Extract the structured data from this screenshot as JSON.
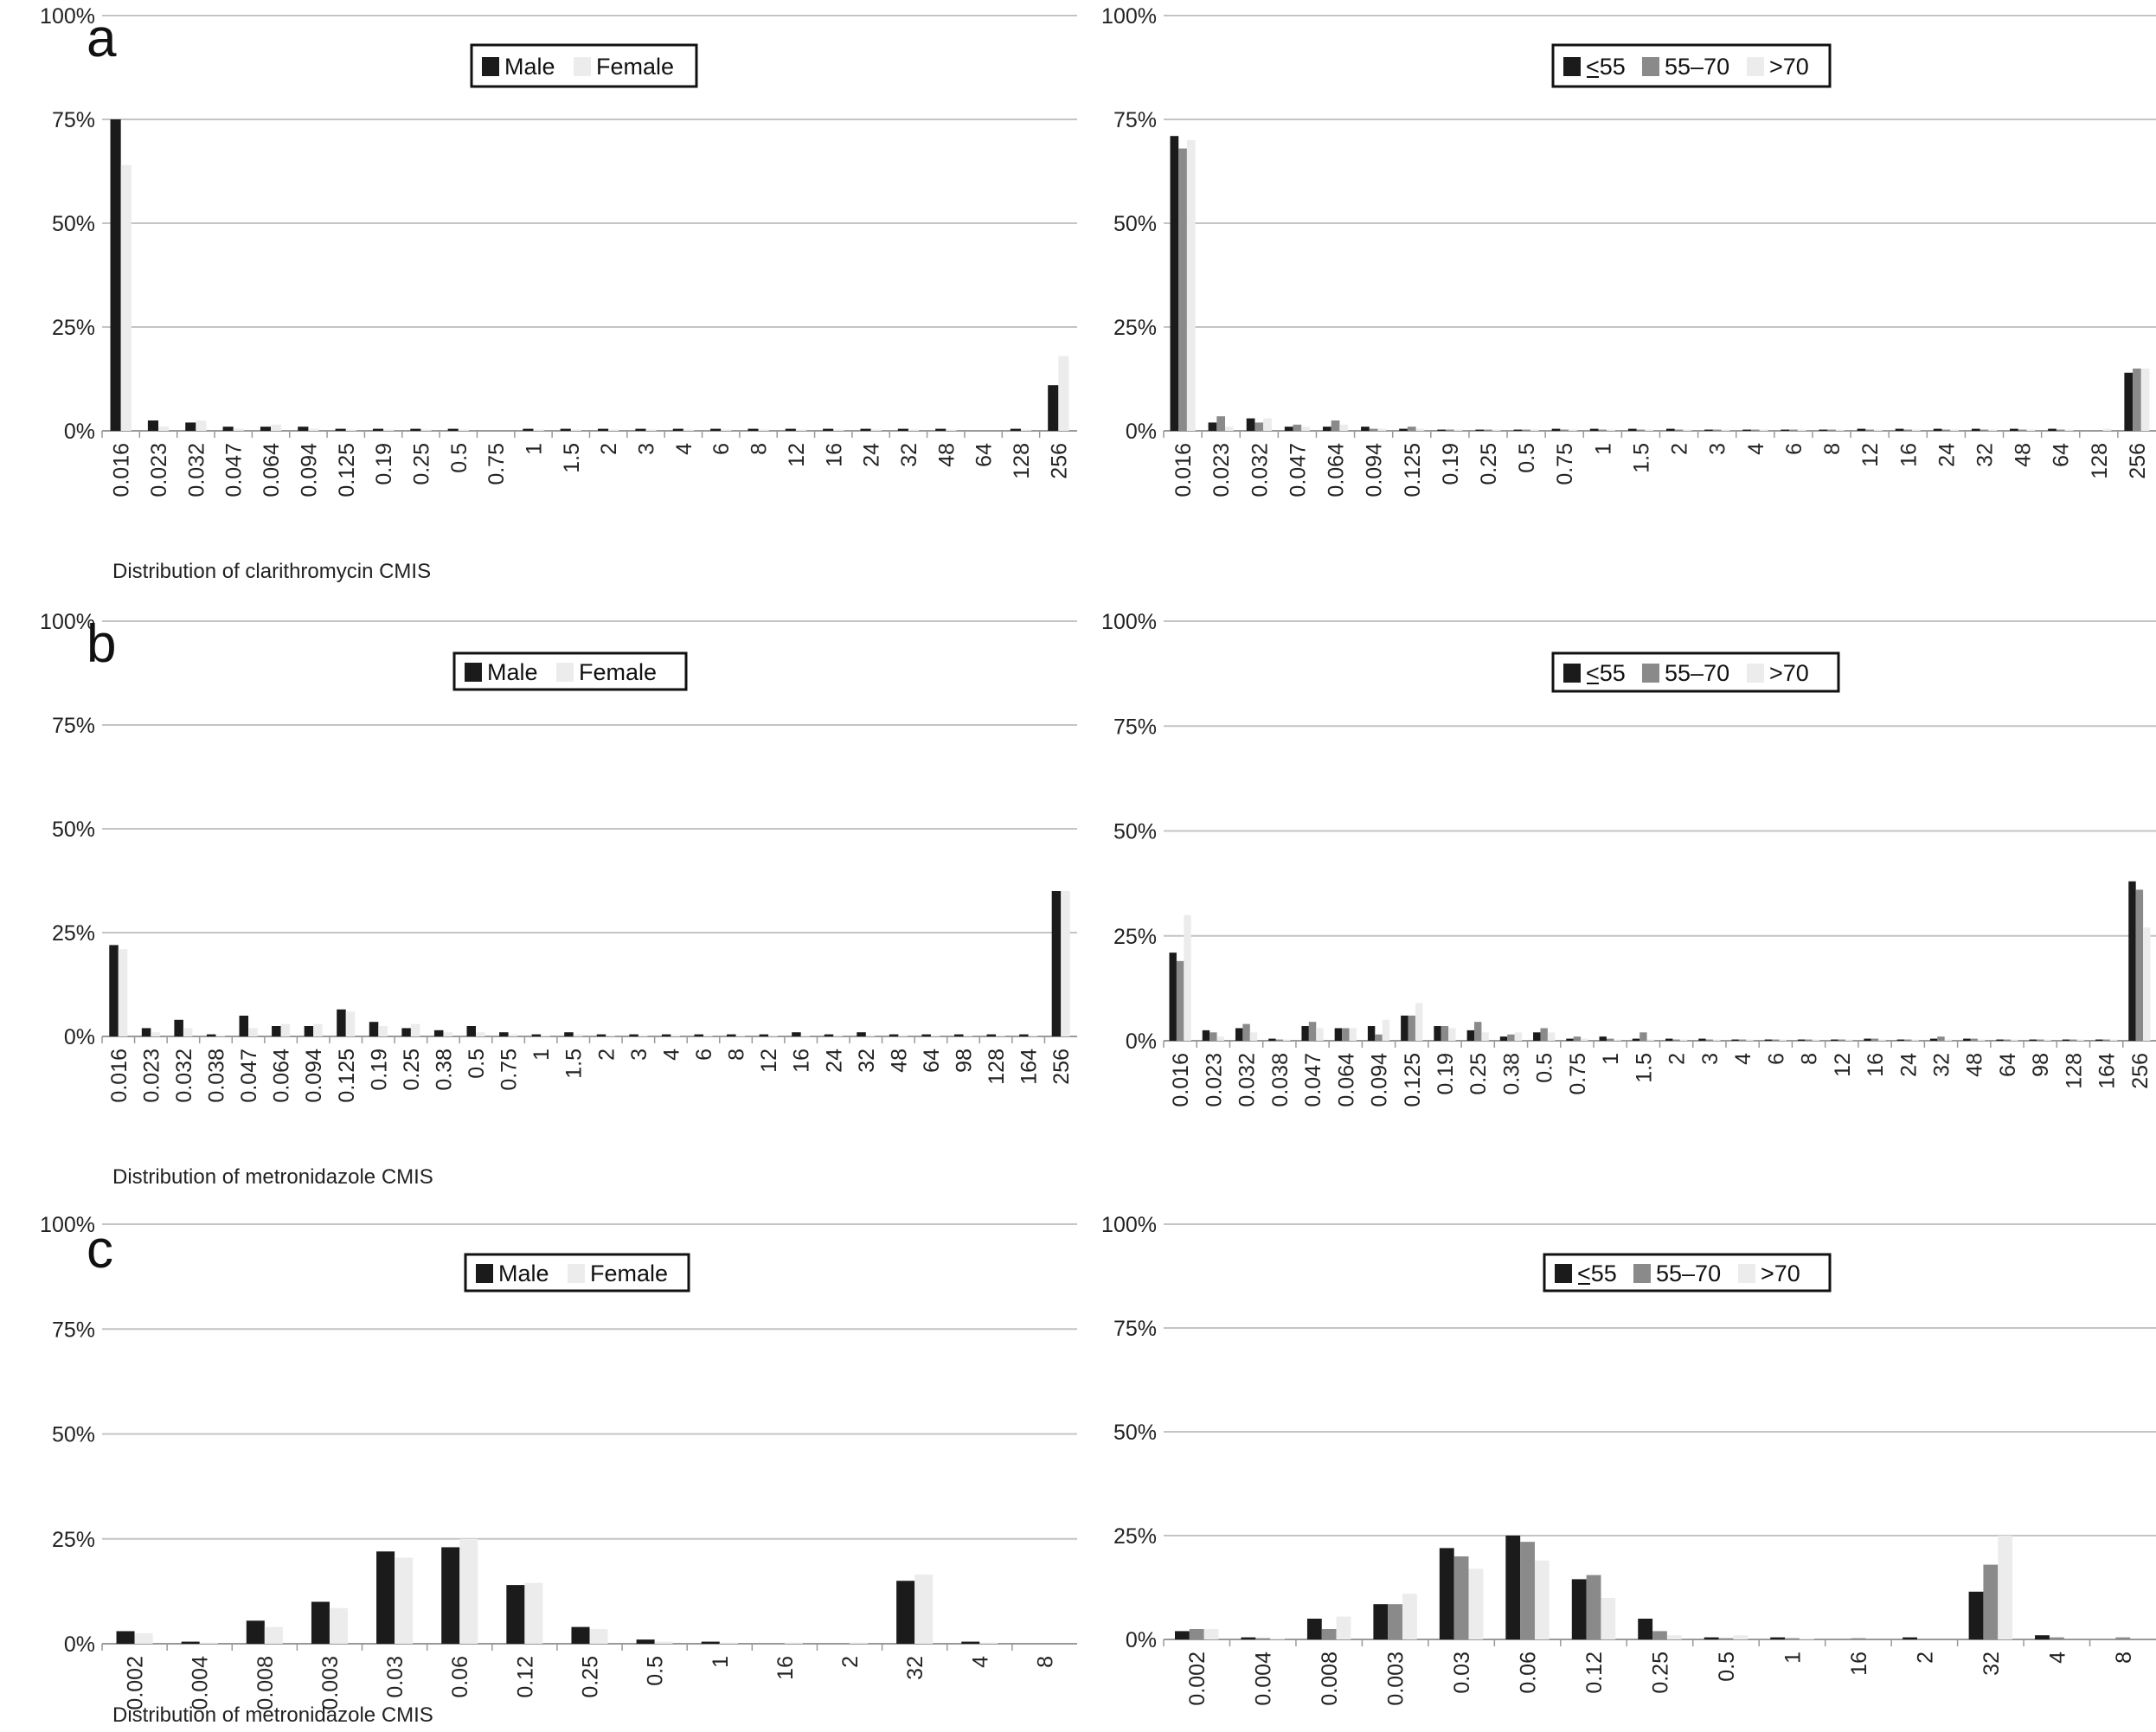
{
  "figure": {
    "series_colors": {
      "Male": "#1b1b1b",
      "Female": "#ececec",
      "<55": "#1b1b1b",
      "55-70": "#8a8a8a",
      ">70": "#ececec"
    },
    "grid_color": "#c4c4c4"
  },
  "chart_data": [
    {
      "id": "a-sex",
      "type": "bar",
      "panel_letter": "a",
      "xlabel": "Distribution of clarithromycin CMIS",
      "ylim": [
        0,
        100
      ],
      "yticks": [
        "0%",
        "25%",
        "50%",
        "75%",
        "100%"
      ],
      "grid": true,
      "legend_position": "top-center",
      "categories": [
        "0.016",
        "0.023",
        "0.032",
        "0.047",
        "0.064",
        "0.094",
        "0.125",
        "0.19",
        "0.25",
        "0.5",
        "0.75",
        "1",
        "1.5",
        "2",
        "3",
        "4",
        "6",
        "8",
        "12",
        "16",
        "24",
        "32",
        "48",
        "64",
        "128",
        "256"
      ],
      "series": [
        {
          "name": "Male",
          "legend": "Male",
          "values": [
            75,
            2.5,
            2,
            1,
            1,
            1,
            0.5,
            0.5,
            0.5,
            0.5,
            0,
            0.5,
            0.5,
            0.5,
            0.5,
            0.5,
            0.5,
            0.5,
            0.5,
            0.5,
            0.5,
            0.5,
            0.5,
            0,
            0.5,
            11
          ]
        },
        {
          "name": "Female",
          "legend": "Female",
          "values": [
            64,
            1,
            2.5,
            0.5,
            1.5,
            0.5,
            0.3,
            0.3,
            0.3,
            0.3,
            0,
            0.3,
            0.3,
            0.3,
            0.3,
            0.3,
            0.3,
            0.3,
            0.3,
            0.3,
            0.3,
            0.3,
            0.3,
            0,
            0.3,
            18
          ]
        }
      ]
    },
    {
      "id": "a-age",
      "type": "bar",
      "panel_letter": "",
      "xlabel": "",
      "ylim": [
        0,
        100
      ],
      "yticks": [
        "0%",
        "25%",
        "50%",
        "75%",
        "100%"
      ],
      "grid": true,
      "legend_position": "top-center",
      "categories": [
        "0.016",
        "0.023",
        "0.032",
        "0.047",
        "0.064",
        "0.094",
        "0.125",
        "0.19",
        "0.25",
        "0.5",
        "0.75",
        "1",
        "1.5",
        "2",
        "3",
        "4",
        "6",
        "8",
        "12",
        "16",
        "24",
        "32",
        "48",
        "64",
        "128",
        "256"
      ],
      "series": [
        {
          "name": "<55",
          "legend": "<55",
          "legend_underline": true,
          "values": [
            71,
            2,
            3,
            1,
            1,
            1,
            0.5,
            0.3,
            0.3,
            0.3,
            0.5,
            0.5,
            0.5,
            0.5,
            0.3,
            0.3,
            0.3,
            0.3,
            0.5,
            0.5,
            0.5,
            0.5,
            0.5,
            0.5,
            0,
            14
          ]
        },
        {
          "name": "55-70",
          "legend": "55–70",
          "values": [
            68,
            3.5,
            2,
            1.5,
            2.5,
            0.5,
            1,
            0.3,
            0.3,
            0.3,
            0.3,
            0.3,
            0.3,
            0.3,
            0.3,
            0.3,
            0.3,
            0.3,
            0.3,
            0.3,
            0.3,
            0.3,
            0.3,
            0.3,
            0,
            15
          ]
        },
        {
          "name": ">70",
          "legend": ">70",
          "values": [
            70,
            1,
            3,
            1,
            1.5,
            0.5,
            0.5,
            0.3,
            0.3,
            0.3,
            0.3,
            0.3,
            0.3,
            0.3,
            0.3,
            0.3,
            0.3,
            0.3,
            0.3,
            0.3,
            0.3,
            0.3,
            0.3,
            0.3,
            0.5,
            15
          ]
        }
      ]
    },
    {
      "id": "b-sex",
      "type": "bar",
      "panel_letter": "b",
      "xlabel": "Distribution of metronidazole CMIS",
      "ylim": [
        0,
        100
      ],
      "yticks": [
        "0%",
        "25%",
        "50%",
        "75%",
        "100%"
      ],
      "grid": true,
      "legend_position": "top-center",
      "categories": [
        "0.016",
        "0.023",
        "0.032",
        "0.038",
        "0.047",
        "0.064",
        "0.094",
        "0.125",
        "0.19",
        "0.25",
        "0.38",
        "0.5",
        "0.75",
        "1",
        "1.5",
        "2",
        "3",
        "4",
        "6",
        "8",
        "12",
        "16",
        "24",
        "32",
        "48",
        "64",
        "98",
        "128",
        "164",
        "256"
      ],
      "series": [
        {
          "name": "Male",
          "legend": "Male",
          "values": [
            22,
            2,
            4,
            0.5,
            5,
            2.5,
            2.5,
            6.5,
            3.5,
            2,
            1.5,
            2.5,
            1,
            0.5,
            1,
            0.5,
            0.5,
            0.5,
            0.5,
            0.5,
            0.5,
            1,
            0.5,
            1,
            0.5,
            0.5,
            0.5,
            0.5,
            0.5,
            35
          ]
        },
        {
          "name": "Female",
          "legend": "Female",
          "values": [
            21,
            1,
            2,
            0.3,
            2,
            3,
            3,
            6,
            2.5,
            3,
            1,
            1,
            0.5,
            0.3,
            0.5,
            0.3,
            0.3,
            0.3,
            0.3,
            0.3,
            0.3,
            0.3,
            0.3,
            0.3,
            0.3,
            0.3,
            0.3,
            0.3,
            0.3,
            35
          ]
        }
      ]
    },
    {
      "id": "b-age",
      "type": "bar",
      "panel_letter": "",
      "xlabel": "",
      "ylim": [
        0,
        100
      ],
      "yticks": [
        "0%",
        "25%",
        "50%",
        "75%",
        "100%"
      ],
      "grid": true,
      "legend_position": "top-center",
      "categories": [
        "0.016",
        "0.023",
        "0.032",
        "0.038",
        "0.047",
        "0.064",
        "0.094",
        "0.125",
        "0.19",
        "0.25",
        "0.38",
        "0.5",
        "0.75",
        "1",
        "1.5",
        "2",
        "3",
        "4",
        "6",
        "8",
        "12",
        "16",
        "24",
        "32",
        "48",
        "64",
        "98",
        "128",
        "164",
        "256"
      ],
      "series": [
        {
          "name": "<55",
          "legend": "<55",
          "legend_underline": true,
          "values": [
            21,
            2.5,
            3,
            0.5,
            3.5,
            3,
            3.5,
            6,
            3.5,
            2.5,
            1,
            2,
            0.5,
            1,
            0.5,
            0.5,
            0.5,
            0.3,
            0.3,
            0.3,
            0.3,
            0.5,
            0.3,
            0.5,
            0.5,
            0.3,
            0.3,
            0.3,
            0.3,
            38
          ]
        },
        {
          "name": "55-70",
          "legend": "55–70",
          "values": [
            19,
            2,
            4,
            0.3,
            4.5,
            3,
            1.5,
            6,
            3.5,
            4.5,
            1.5,
            3,
            1,
            0.5,
            2,
            0.3,
            0.3,
            0.3,
            0.3,
            0.3,
            0.3,
            0.5,
            0.3,
            1,
            0.5,
            0.3,
            0.3,
            0.3,
            0.3,
            36
          ]
        },
        {
          "name": ">70",
          "legend": ">70",
          "values": [
            30,
            1,
            2,
            0.3,
            3,
            3,
            5,
            9,
            3,
            2,
            2,
            2,
            0.5,
            0.3,
            0.3,
            0.3,
            0.3,
            0.3,
            0.3,
            0.3,
            0.3,
            0.3,
            0.3,
            0.3,
            0.3,
            0.3,
            0.3,
            0.3,
            0.3,
            27
          ]
        }
      ]
    },
    {
      "id": "c-sex",
      "type": "bar",
      "panel_letter": "c",
      "xlabel": "Distribution of metronidazole CMIS",
      "ylim": [
        0,
        100
      ],
      "yticks": [
        "0%",
        "25%",
        "50%",
        "75%",
        "100%"
      ],
      "grid": true,
      "legend_position": "top-center",
      "categories": [
        "0.002",
        "0.004",
        "0.008",
        "0.003",
        "0.03",
        "0.06",
        "0.12",
        "0.25",
        "0.5",
        "1",
        "16",
        "2",
        "32",
        "4",
        "8"
      ],
      "series": [
        {
          "name": "Male",
          "legend": "Male",
          "values": [
            3,
            0.5,
            5.5,
            10,
            22,
            23,
            14,
            4,
            1,
            0.5,
            0,
            0,
            15,
            0.5,
            0
          ]
        },
        {
          "name": "Female",
          "legend": "Female",
          "values": [
            2.5,
            0.3,
            4,
            8.5,
            20.5,
            25,
            14.5,
            3.5,
            0.5,
            0.3,
            0.3,
            0.3,
            16.5,
            0.3,
            0
          ]
        }
      ]
    },
    {
      "id": "c-age",
      "type": "bar",
      "panel_letter": "",
      "xlabel": "",
      "ylim": [
        0,
        100
      ],
      "yticks": [
        "0%",
        "25%",
        "50%",
        "75%",
        "100%"
      ],
      "grid": true,
      "legend_position": "top-center",
      "categories": [
        "0.002",
        "0.004",
        "0.008",
        "0.003",
        "0.03",
        "0.06",
        "0.12",
        "0.25",
        "0.5",
        "1",
        "16",
        "2",
        "32",
        "4",
        "8"
      ],
      "series": [
        {
          "name": "<55",
          "legend": "<55",
          "legend_underline": true,
          "values": [
            2,
            0.5,
            5,
            8.5,
            22,
            25,
            14.5,
            5,
            0.5,
            0.5,
            0,
            0.5,
            11.5,
            1,
            0
          ]
        },
        {
          "name": "55-70",
          "legend": "55–70",
          "values": [
            2.5,
            0.3,
            2.5,
            8.5,
            20,
            23.5,
            15.5,
            2,
            0.3,
            0.3,
            0.3,
            0,
            18,
            0.5,
            0.5
          ]
        },
        {
          "name": ">70",
          "legend": ">70",
          "values": [
            2.5,
            0.3,
            5.5,
            11,
            17,
            19,
            10,
            1,
            1,
            0.3,
            0,
            0,
            25,
            0,
            0
          ]
        }
      ]
    }
  ]
}
